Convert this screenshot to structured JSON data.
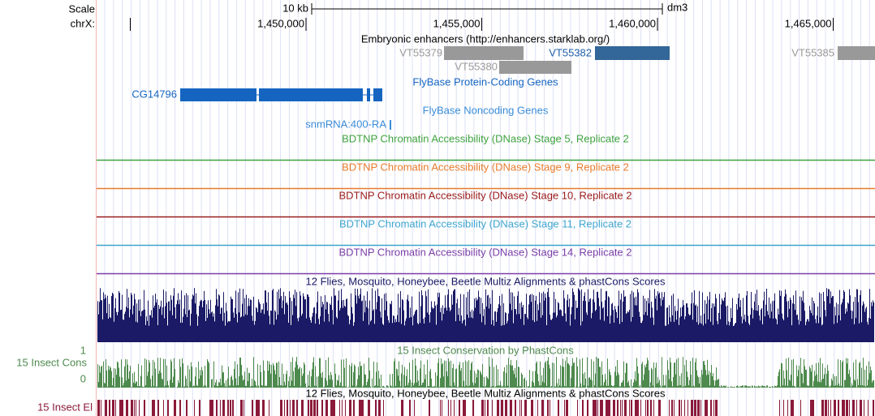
{
  "header": {
    "scale_label": "Scale",
    "chrom_label": "chrX:",
    "scale_bar": "10 kb",
    "assembly": "dm3",
    "positions": [
      "1,450,000",
      "1,455,000",
      "1,460,000",
      "1,465,000"
    ]
  },
  "tracks": {
    "enhancers": {
      "title": "Embryonic enhancers (http://enhancers.starklab.org/)",
      "items": [
        "VT55379",
        "VT55380",
        "VT55382",
        "VT55385"
      ]
    },
    "protein_coding": {
      "title": "FlyBase Protein-Coding Genes",
      "gene": "CG14796"
    },
    "noncoding": {
      "title": "FlyBase Noncoding Genes",
      "gene": "snmRNA:400-RA"
    },
    "dnase": [
      "BDTNP Chromatin Accessibility (DNase) Stage 5, Replicate 2",
      "BDTNP Chromatin Accessibility (DNase) Stage 9, Replicate 2",
      "BDTNP Chromatin Accessibility (DNase) Stage 10, Replicate 2",
      "BDTNP Chromatin Accessibility (DNase) Stage 11, Replicate 2",
      "BDTNP Chromatin Accessibility (DNase) Stage 14, Replicate 2"
    ],
    "multiz": {
      "title": "12 Flies, Mosquito, Honeybee, Beetle Multiz Alignments & phastCons Scores"
    },
    "cons": {
      "title": "15 Insect Conservation by PhastCons",
      "side_label": "15 Insect Cons",
      "max_label": "1",
      "min_label": "0"
    },
    "elements": {
      "title": "12 Flies, Mosquito, Honeybee, Beetle Multiz Alignments & phastCons Scores",
      "side_label": "15 Insect El"
    }
  }
}
